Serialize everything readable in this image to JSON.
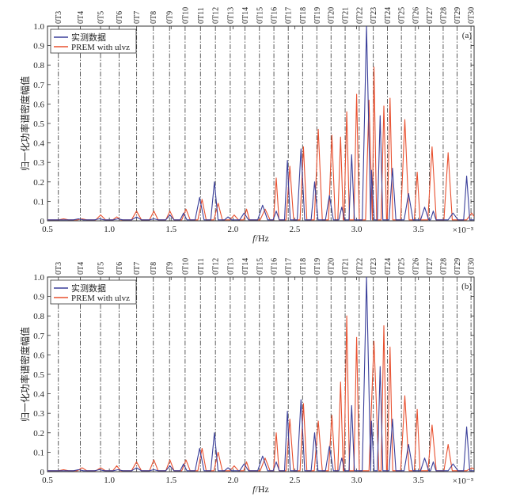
{
  "chart_data": [
    {
      "type": "line",
      "panel_label": "(a)",
      "ylabel": "归一化功率谱密度幅值",
      "xlabel": "f/Hz",
      "x_exponent": "×10⁻³",
      "xlim": [
        0.5,
        3.95
      ],
      "ylim": [
        0,
        1.0
      ],
      "x_ticks": [
        0.5,
        1.0,
        1.5,
        2.0,
        2.5,
        3.0,
        3.5
      ],
      "x_tick_labels": [
        "0.5",
        "1.0",
        "1.5",
        "2.0",
        "2.5",
        "3.0",
        "3.5"
      ],
      "y_ticks": [
        0,
        0.1,
        0.2,
        0.3,
        0.4,
        0.5,
        0.6,
        0.7,
        0.8,
        0.9,
        1.0
      ],
      "y_tick_labels": [
        "0",
        "0.1",
        "0.2",
        "0.3",
        "0.4",
        "0.5",
        "0.6",
        "0.7",
        "0.8",
        "0.9",
        "1.0"
      ],
      "modes": [
        {
          "name": "0T3",
          "f": 0.588
        },
        {
          "name": "0T4",
          "f": 0.766
        },
        {
          "name": "0T5",
          "f": 0.929
        },
        {
          "name": "0T6",
          "f": 1.079
        },
        {
          "name": "0T7",
          "f": 1.221
        },
        {
          "name": "0T8",
          "f": 1.356
        },
        {
          "name": "0T9",
          "f": 1.487
        },
        {
          "name": "0T10",
          "f": 1.613
        },
        {
          "name": "0T11",
          "f": 1.737
        },
        {
          "name": "0T12",
          "f": 1.858
        },
        {
          "name": "0T13",
          "f": 1.978
        },
        {
          "name": "0T14",
          "f": 2.097
        },
        {
          "name": "0T15",
          "f": 2.214
        },
        {
          "name": "0T16",
          "f": 2.331
        },
        {
          "name": "0T17",
          "f": 2.447
        },
        {
          "name": "0T18",
          "f": 2.563
        },
        {
          "name": "0T19",
          "f": 2.678
        },
        {
          "name": "0T20",
          "f": 2.793
        },
        {
          "name": "0T21",
          "f": 2.907
        },
        {
          "name": "0T22",
          "f": 3.021
        },
        {
          "name": "0T23",
          "f": 3.135
        },
        {
          "name": "0T24",
          "f": 3.249
        },
        {
          "name": "0T25",
          "f": 3.362
        },
        {
          "name": "0T26",
          "f": 3.475
        },
        {
          "name": "0T27",
          "f": 3.588
        },
        {
          "name": "0T28",
          "f": 3.7
        },
        {
          "name": "0T29",
          "f": 3.812
        },
        {
          "name": "0T30",
          "f": 3.925
        }
      ],
      "series": [
        {
          "name": "实测数据",
          "color": "#3a3f9a",
          "peaks": [
            [
              0.58,
              0.005
            ],
            [
              0.75,
              0.01
            ],
            [
              0.92,
              0.01
            ],
            [
              1.07,
              0.01
            ],
            [
              1.22,
              0.02
            ],
            [
              1.36,
              0.01
            ],
            [
              1.49,
              0.03
            ],
            [
              1.6,
              0.04
            ],
            [
              1.73,
              0.12
            ],
            [
              1.85,
              0.2
            ],
            [
              1.96,
              0.02
            ],
            [
              2.09,
              0.04
            ],
            [
              2.24,
              0.08
            ],
            [
              2.35,
              0.05
            ],
            [
              2.44,
              0.31
            ],
            [
              2.55,
              0.37
            ],
            [
              2.66,
              0.2
            ],
            [
              2.78,
              0.13
            ],
            [
              2.88,
              0.07
            ],
            [
              2.96,
              0.34
            ],
            [
              3.08,
              1.0
            ],
            [
              3.12,
              0.26
            ],
            [
              3.19,
              0.54
            ],
            [
              3.29,
              0.27
            ],
            [
              3.42,
              0.14
            ],
            [
              3.55,
              0.07
            ],
            [
              3.62,
              0.05
            ],
            [
              3.78,
              0.04
            ],
            [
              3.89,
              0.23
            ]
          ],
          "baseline": 0.005
        },
        {
          "name": "PREM with ulvz",
          "color": "#e8502f",
          "peaks": [
            [
              0.63,
              0.01
            ],
            [
              0.78,
              0.01
            ],
            [
              0.93,
              0.03
            ],
            [
              1.06,
              0.02
            ],
            [
              1.22,
              0.05
            ],
            [
              1.36,
              0.05
            ],
            [
              1.49,
              0.05
            ],
            [
              1.62,
              0.06
            ],
            [
              1.75,
              0.11
            ],
            [
              1.88,
              0.09
            ],
            [
              2.01,
              0.03
            ],
            [
              2.11,
              0.06
            ],
            [
              2.26,
              0.06
            ],
            [
              2.35,
              0.22
            ],
            [
              2.46,
              0.28
            ],
            [
              2.57,
              0.38
            ],
            [
              2.69,
              0.47
            ],
            [
              2.8,
              0.44
            ],
            [
              2.87,
              0.43
            ],
            [
              2.92,
              0.56
            ],
            [
              3.0,
              0.65
            ],
            [
              3.1,
              0.62
            ],
            [
              3.14,
              0.79
            ],
            [
              3.22,
              0.59
            ],
            [
              3.27,
              0.63
            ],
            [
              3.39,
              0.52
            ],
            [
              3.49,
              0.25
            ],
            [
              3.61,
              0.38
            ],
            [
              3.74,
              0.35
            ],
            [
              3.93,
              0.04
            ]
          ],
          "baseline": 0.005
        }
      ]
    },
    {
      "type": "line",
      "panel_label": "(b)",
      "ylabel": "归一化功率谱密度幅值",
      "xlabel": "f/Hz",
      "x_exponent": "×10⁻³",
      "xlim": [
        0.5,
        3.95
      ],
      "ylim": [
        0,
        1.0
      ],
      "x_ticks": [
        0.5,
        1.0,
        1.5,
        2.0,
        2.5,
        3.0,
        3.5
      ],
      "x_tick_labels": [
        "0.5",
        "1.0",
        "1.5",
        "2.0",
        "2.5",
        "3.0",
        "3.5"
      ],
      "y_ticks": [
        0,
        0.1,
        0.2,
        0.3,
        0.4,
        0.5,
        0.6,
        0.7,
        0.8,
        0.9,
        1.0
      ],
      "y_tick_labels": [
        "0",
        "0.1",
        "0.2",
        "0.3",
        "0.4",
        "0.5",
        "0.6",
        "0.7",
        "0.8",
        "0.9",
        "1.0"
      ],
      "modes": [
        {
          "name": "0T3",
          "f": 0.588
        },
        {
          "name": "0T4",
          "f": 0.766
        },
        {
          "name": "0T5",
          "f": 0.929
        },
        {
          "name": "0T6",
          "f": 1.079
        },
        {
          "name": "0T7",
          "f": 1.221
        },
        {
          "name": "0T8",
          "f": 1.356
        },
        {
          "name": "0T9",
          "f": 1.487
        },
        {
          "name": "0T10",
          "f": 1.613
        },
        {
          "name": "0T11",
          "f": 1.737
        },
        {
          "name": "0T12",
          "f": 1.858
        },
        {
          "name": "0T13",
          "f": 1.978
        },
        {
          "name": "0T14",
          "f": 2.097
        },
        {
          "name": "0T15",
          "f": 2.214
        },
        {
          "name": "0T16",
          "f": 2.331
        },
        {
          "name": "0T17",
          "f": 2.447
        },
        {
          "name": "0T18",
          "f": 2.563
        },
        {
          "name": "0T19",
          "f": 2.678
        },
        {
          "name": "0T20",
          "f": 2.793
        },
        {
          "name": "0T21",
          "f": 2.907
        },
        {
          "name": "0T22",
          "f": 3.021
        },
        {
          "name": "0T23",
          "f": 3.135
        },
        {
          "name": "0T24",
          "f": 3.249
        },
        {
          "name": "0T25",
          "f": 3.362
        },
        {
          "name": "0T26",
          "f": 3.475
        },
        {
          "name": "0T27",
          "f": 3.588
        },
        {
          "name": "0T28",
          "f": 3.7
        },
        {
          "name": "0T29",
          "f": 3.812
        },
        {
          "name": "0T30",
          "f": 3.925
        }
      ],
      "series": [
        {
          "name": "实测数据",
          "color": "#3a3f9a",
          "peaks": [
            [
              0.58,
              0.005
            ],
            [
              0.75,
              0.01
            ],
            [
              0.92,
              0.01
            ],
            [
              1.07,
              0.01
            ],
            [
              1.22,
              0.02
            ],
            [
              1.36,
              0.01
            ],
            [
              1.49,
              0.03
            ],
            [
              1.6,
              0.04
            ],
            [
              1.73,
              0.12
            ],
            [
              1.85,
              0.2
            ],
            [
              1.96,
              0.02
            ],
            [
              2.09,
              0.04
            ],
            [
              2.24,
              0.08
            ],
            [
              2.35,
              0.05
            ],
            [
              2.44,
              0.31
            ],
            [
              2.55,
              0.37
            ],
            [
              2.66,
              0.2
            ],
            [
              2.78,
              0.13
            ],
            [
              2.88,
              0.07
            ],
            [
              2.96,
              0.34
            ],
            [
              3.08,
              1.0
            ],
            [
              3.12,
              0.26
            ],
            [
              3.19,
              0.54
            ],
            [
              3.29,
              0.27
            ],
            [
              3.42,
              0.14
            ],
            [
              3.55,
              0.07
            ],
            [
              3.62,
              0.05
            ],
            [
              3.78,
              0.04
            ],
            [
              3.89,
              0.23
            ]
          ],
          "baseline": 0.005
        },
        {
          "name": "PREM with ulvz",
          "color": "#e8502f",
          "peaks": [
            [
              0.63,
              0.01
            ],
            [
              0.78,
              0.02
            ],
            [
              0.93,
              0.02
            ],
            [
              1.06,
              0.03
            ],
            [
              1.22,
              0.05
            ],
            [
              1.36,
              0.06
            ],
            [
              1.49,
              0.06
            ],
            [
              1.62,
              0.06
            ],
            [
              1.75,
              0.12
            ],
            [
              1.88,
              0.1
            ],
            [
              2.01,
              0.03
            ],
            [
              2.11,
              0.05
            ],
            [
              2.26,
              0.07
            ],
            [
              2.35,
              0.2
            ],
            [
              2.46,
              0.27
            ],
            [
              2.57,
              0.35
            ],
            [
              2.69,
              0.26
            ],
            [
              2.8,
              0.29
            ],
            [
              2.87,
              0.46
            ],
            [
              2.92,
              0.8
            ],
            [
              3.0,
              0.69
            ],
            [
              3.14,
              0.67
            ],
            [
              3.22,
              0.75
            ],
            [
              3.27,
              0.64
            ],
            [
              3.39,
              0.39
            ],
            [
              3.49,
              0.32
            ],
            [
              3.61,
              0.24
            ],
            [
              3.74,
              0.14
            ],
            [
              3.93,
              0.02
            ]
          ],
          "baseline": 0.005
        }
      ]
    }
  ]
}
